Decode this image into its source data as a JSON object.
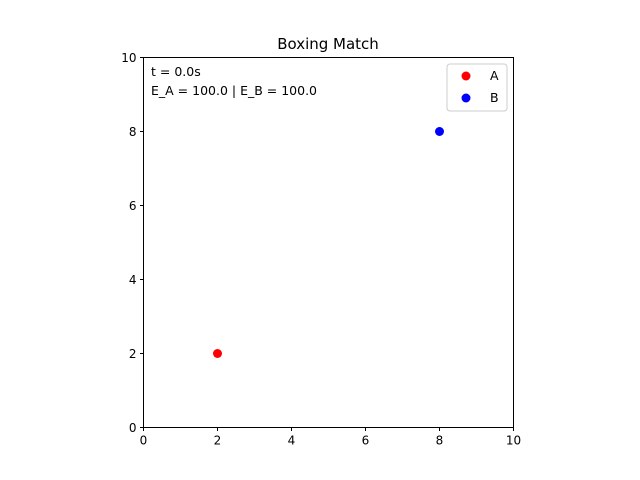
{
  "chart_data": {
    "type": "scatter",
    "title": "Boxing Match",
    "xlabel": "",
    "ylabel": "",
    "xlim": [
      0,
      10
    ],
    "ylim": [
      0,
      10
    ],
    "xticks": [
      0,
      2,
      4,
      6,
      8,
      10
    ],
    "yticks": [
      0,
      2,
      4,
      6,
      8,
      10
    ],
    "grid": false,
    "legend_position": "top-right",
    "series": [
      {
        "name": "A",
        "color": "#ff0000",
        "points": [
          {
            "x": 2,
            "y": 2
          }
        ]
      },
      {
        "name": "B",
        "color": "#0000ff",
        "points": [
          {
            "x": 8,
            "y": 8
          }
        ]
      }
    ],
    "annotations": [
      "t = 0.0s",
      "E_A = 100.0 | E_B = 100.0"
    ]
  }
}
